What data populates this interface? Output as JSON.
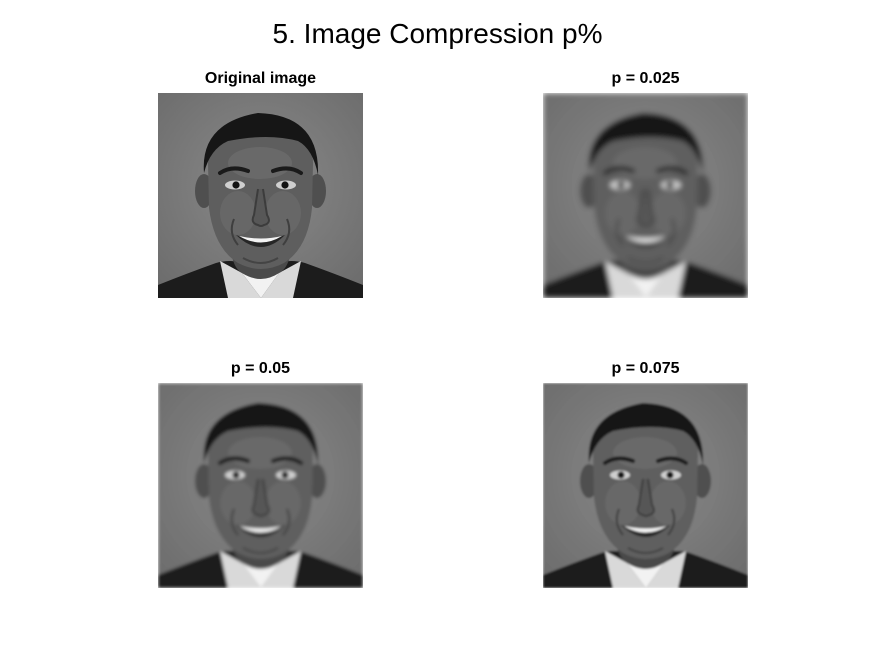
{
  "figure": {
    "title": "5. Image Compression p%"
  },
  "panels": [
    {
      "title": "Original image",
      "blur": 0
    },
    {
      "title": "p = 0.025",
      "blur": 2.6
    },
    {
      "title": "p = 0.05",
      "blur": 1.6
    },
    {
      "title": "p = 0.075",
      "blur": 1.0
    }
  ]
}
